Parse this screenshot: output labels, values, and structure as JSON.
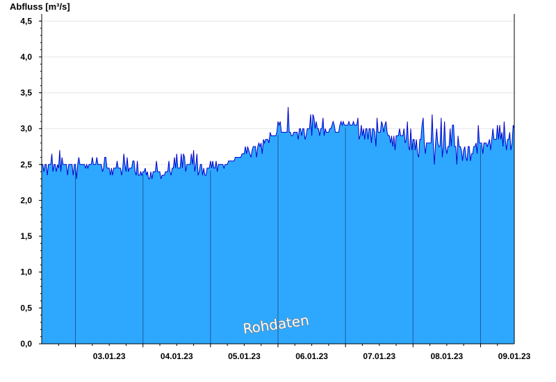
{
  "chart_data": {
    "type": "area",
    "title": "",
    "ylabel": "Abfluss [m³/s]",
    "xlabel": "",
    "ylim": [
      0,
      4.6
    ],
    "y_ticks": [
      0,
      0.5,
      1.0,
      1.5,
      2.0,
      2.5,
      3.0,
      3.5,
      4.0,
      4.5
    ],
    "y_tick_labels": [
      "0,0",
      "0,5",
      "1,0",
      "1,5",
      "2,0",
      "2,5",
      "3,0",
      "3,5",
      "4,0",
      "4,5"
    ],
    "x_range_days": [
      "02.01.23 12:00",
      "09.01.23 12:00"
    ],
    "x_tick_labels": [
      "03.01.23",
      "04.01.23",
      "05.01.23",
      "06.01.23",
      "07.01.23",
      "08.01.23",
      "09.01.23"
    ],
    "grid": true,
    "fill_color": "#2ea8ff",
    "line_color": "#0000cc",
    "day_divider_color": "#1a5a99",
    "watermark": "Rohdaten",
    "series": [
      {
        "time": [
          "02.01.23 12:00",
          "02.01.23 18:00",
          "03.01.23 00:00",
          "03.01.23 06:00",
          "03.01.23 12:00",
          "03.01.23 18:00",
          "04.01.23 00:00",
          "04.01.23 06:00",
          "04.01.23 12:00",
          "04.01.23 18:00",
          "05.01.23 00:00",
          "05.01.23 06:00",
          "05.01.23 12:00",
          "05.01.23 18:00",
          "06.01.23 00:00",
          "06.01.23 06:00",
          "06.01.23 12:00",
          "06.01.23 18:00",
          "07.01.23 00:00",
          "07.01.23 06:00",
          "07.01.23 12:00",
          "07.01.23 18:00",
          "08.01.23 00:00",
          "08.01.23 06:00",
          "08.01.23 12:00",
          "08.01.23 18:00",
          "09.01.23 00:00",
          "09.01.23 06:00",
          "09.01.23 12:00"
        ],
        "values": [
          2.5,
          2.52,
          2.5,
          2.52,
          2.45,
          2.48,
          2.4,
          2.38,
          2.45,
          2.5,
          2.45,
          2.52,
          2.65,
          2.78,
          2.95,
          2.97,
          3.0,
          3.02,
          3.05,
          3.03,
          2.95,
          2.9,
          2.85,
          2.8,
          2.75,
          2.72,
          2.8,
          2.85,
          2.88
        ],
        "max": [
          2.62,
          2.73,
          2.62,
          2.62,
          2.62,
          2.72,
          2.48,
          2.6,
          2.65,
          2.73,
          2.6,
          2.6,
          2.73,
          2.85,
          3.1,
          3.47,
          3.2,
          3.22,
          3.12,
          3.22,
          3.15,
          3.1,
          3.22,
          3.24,
          3.1,
          3.15,
          3.06,
          3.1,
          3.08
        ],
        "min": [
          2.3,
          2.38,
          2.3,
          2.4,
          2.3,
          2.38,
          2.28,
          2.3,
          2.4,
          2.35,
          2.3,
          2.45,
          2.55,
          2.6,
          2.95,
          2.85,
          2.8,
          2.9,
          2.85,
          2.8,
          2.75,
          2.7,
          2.6,
          2.4,
          2.55,
          2.4,
          2.65,
          2.7,
          2.7
        ]
      }
    ]
  }
}
